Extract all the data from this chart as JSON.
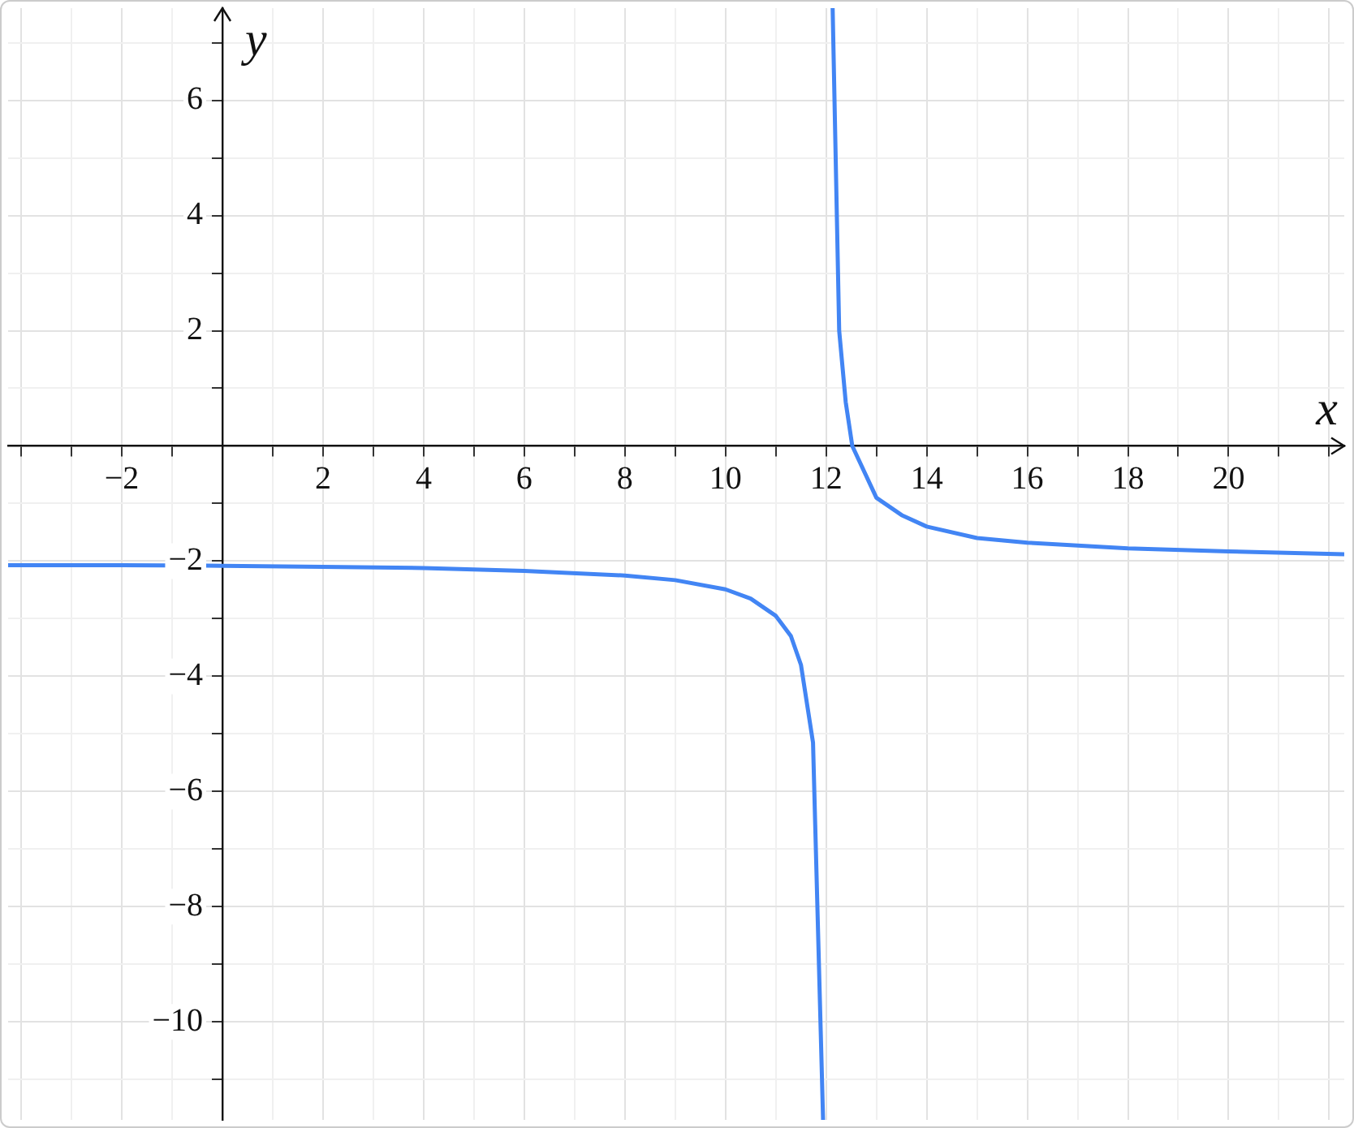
{
  "chart_data": {
    "type": "line",
    "xlabel": "x",
    "ylabel": "y",
    "series": [
      {
        "color": "#4285f4",
        "x": [
          -4.26,
          -2,
          0,
          2,
          4,
          6,
          8,
          9,
          10,
          10.5,
          11,
          11.3,
          11.5,
          11.74,
          11.94,
          null,
          12.13,
          12.26,
          12.39,
          12.52,
          13,
          13.5,
          14,
          15,
          16,
          18,
          20,
          22.3
        ],
        "values": [
          -2.07,
          -2.07,
          -2.08,
          -2.1,
          -2.12,
          -2.17,
          -2.25,
          -2.33,
          -2.49,
          -2.65,
          -2.95,
          -3.3,
          -3.8,
          -5.15,
          -11.7,
          null,
          7.6,
          2,
          0.76,
          0,
          -0.9,
          -1.2,
          -1.4,
          -1.6,
          -1.68,
          -1.78,
          -1.83,
          -1.88
        ]
      }
    ],
    "xlim": [
      -4.26,
      22.3
    ],
    "ylim": [
      -11.7,
      7.6
    ],
    "xticks": [
      {
        "value": -4,
        "label": null
      },
      {
        "value": -3,
        "label": null
      },
      {
        "value": -2,
        "label": "−2"
      },
      {
        "value": -1,
        "label": null
      },
      {
        "value": 0,
        "label": null
      },
      {
        "value": 1,
        "label": null
      },
      2,
      {
        "value": 3,
        "label": null
      },
      4,
      {
        "value": 5,
        "label": null
      },
      6,
      {
        "value": 7,
        "label": null
      },
      8,
      {
        "value": 9,
        "label": null
      },
      10,
      {
        "value": 11,
        "label": null
      },
      12,
      {
        "value": 13,
        "label": null
      },
      14,
      {
        "value": 15,
        "label": null
      },
      16,
      {
        "value": 17,
        "label": null
      },
      18,
      {
        "value": 19,
        "label": null
      },
      20,
      {
        "value": 21,
        "label": null
      },
      {
        "value": 22,
        "label": null
      }
    ],
    "yticks": [
      {
        "value": -11,
        "label": null
      },
      {
        "value": -10,
        "label": "−10"
      },
      {
        "value": -9,
        "label": null
      },
      {
        "value": -8,
        "label": "−8"
      },
      {
        "value": -7,
        "label": null
      },
      {
        "value": -6,
        "label": "−6"
      },
      {
        "value": -5,
        "label": null
      },
      {
        "value": -4,
        "label": "−4"
      },
      {
        "value": -3,
        "label": null
      },
      {
        "value": -2,
        "label": "−2"
      },
      {
        "value": -1,
        "label": null
      },
      {
        "value": 0,
        "label": null
      },
      {
        "value": 1,
        "label": null
      },
      2,
      {
        "value": 3,
        "label": null
      },
      4,
      {
        "value": 5,
        "label": null
      },
      6,
      {
        "value": 7,
        "label": null
      }
    ],
    "grid": true,
    "marker": "none",
    "line_style": "solid",
    "legend": false
  }
}
